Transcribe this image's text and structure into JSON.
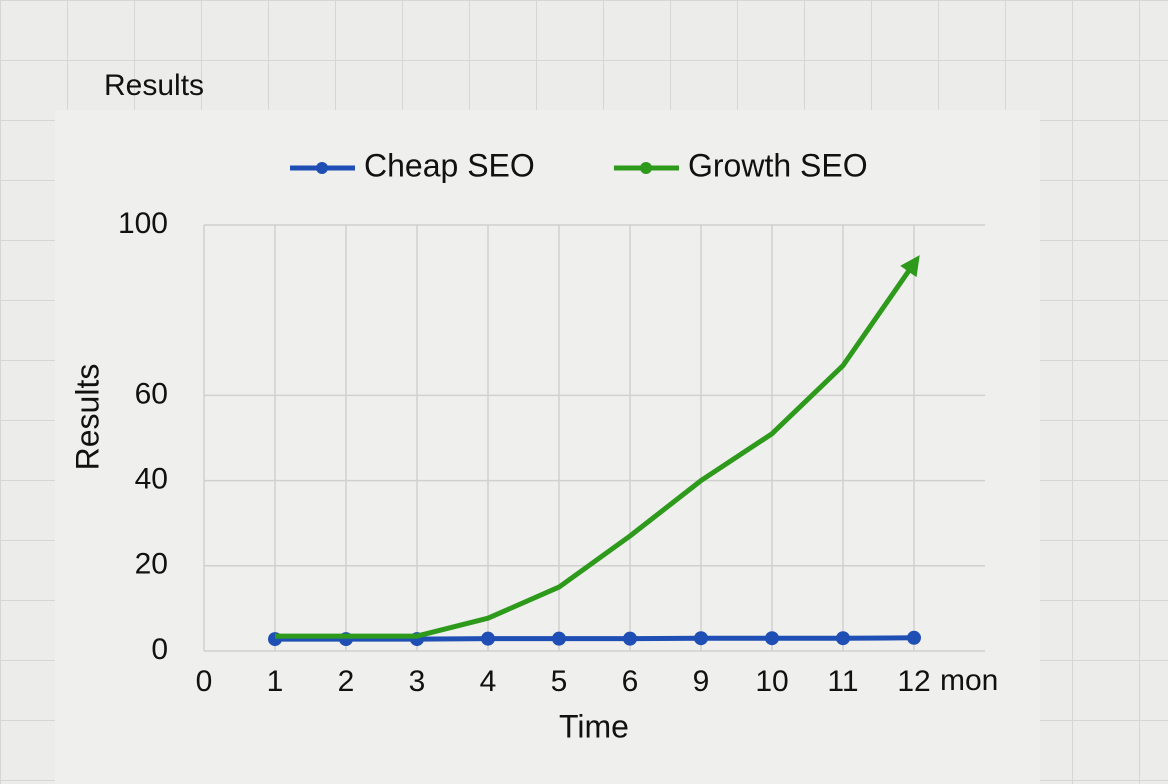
{
  "chart_data": {
    "type": "line",
    "title": "Results",
    "x_label": "Time",
    "x_unit_label": "mon",
    "y_label": "Results",
    "categories": [
      "0",
      "1",
      "2",
      "3",
      "4",
      "5",
      "6",
      "9",
      "10",
      "11",
      "12"
    ],
    "series": [
      {
        "name": "Cheap SEO",
        "color": "#1f4fb4",
        "markers": true,
        "arrow": false,
        "values": [
          null,
          2.8,
          2.8,
          2.8,
          2.9,
          2.9,
          2.9,
          3,
          3,
          3,
          3.1
        ]
      },
      {
        "name": "Growth SEO",
        "color": "#2e9a1c",
        "markers": false,
        "arrow": true,
        "values": [
          null,
          3.5,
          3.5,
          3.5,
          7.7,
          15,
          27,
          40,
          51,
          67,
          91
        ]
      }
    ],
    "ylim": [
      0,
      100
    ],
    "yticks": [
      0,
      20,
      40,
      60,
      100
    ],
    "grid": true
  }
}
